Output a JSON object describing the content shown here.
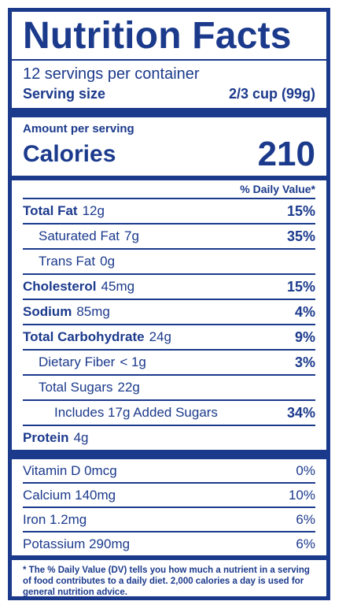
{
  "title": "Nutrition Facts",
  "servings_per_container": "12 servings per container",
  "serving_size_label": "Serving size",
  "serving_size_value": "2/3 cup (99g)",
  "amount_per_serving": "Amount per serving",
  "calories_label": "Calories",
  "calories_value": "210",
  "daily_value_header": "% Daily Value*",
  "nutrients": [
    {
      "name": "Total Fat",
      "amount": "12g",
      "dv": "15%"
    },
    {
      "name": "Saturated Fat",
      "amount": "7g",
      "dv": "35%"
    },
    {
      "name": "Trans Fat",
      "amount": "0g",
      "dv": ""
    },
    {
      "name": "Cholesterol",
      "amount": "45mg",
      "dv": "15%"
    },
    {
      "name": "Sodium",
      "amount": "85mg",
      "dv": "4%"
    },
    {
      "name": "Total Carbohydrate",
      "amount": "24g",
      "dv": "9%"
    },
    {
      "name": "Dietary Fiber",
      "amount": "< 1g",
      "dv": "3%"
    },
    {
      "name": "Total Sugars",
      "amount": "22g",
      "dv": ""
    },
    {
      "name": "Includes 17g Added Sugars",
      "amount": "",
      "dv": "34%"
    },
    {
      "name": "Protein",
      "amount": "4g",
      "dv": ""
    }
  ],
  "vitamins": [
    {
      "name": "Vitamin D 0mcg",
      "dv": "0%"
    },
    {
      "name": "Calcium 140mg",
      "dv": "10%"
    },
    {
      "name": "Iron 1.2mg",
      "dv": "6%"
    },
    {
      "name": "Potassium 290mg",
      "dv": "6%"
    }
  ],
  "footnote": "* The % Daily Value (DV) tells you how much a nutrient in a serving of food contributes to a daily diet. 2,000 calories a day is used for general nutrition advice.",
  "colors": {
    "ink": "#1b3a8c",
    "background": "#ffffff"
  }
}
